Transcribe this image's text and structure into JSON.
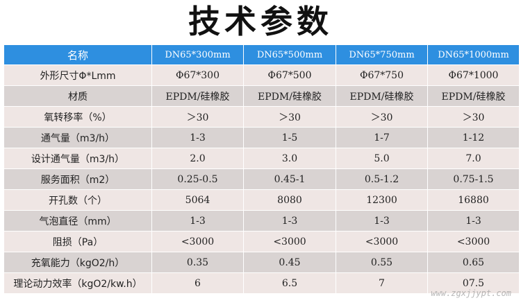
{
  "title": "技术参数",
  "header": [
    "名称",
    "DN65*300mm",
    "DN65*500mm",
    "DN65*750mm",
    "DN65*1000mm"
  ],
  "rows": [
    {
      "label": "外形尺寸Φ*Lmm",
      "values": [
        "Φ67*300",
        "Φ67*500",
        "Φ67*750",
        "Φ67*1000"
      ]
    },
    {
      "label": "材质",
      "values": [
        "EPDM/硅橡胶",
        "EPDM/硅橡胶",
        "EPDM/硅橡胶",
        "EPDM/硅橡胶"
      ]
    },
    {
      "label": "氧转移率（%）",
      "values": [
        "＞30",
        "＞30",
        "＞30",
        "＞30"
      ]
    },
    {
      "label": "通气量（m3/h）",
      "values": [
        "1-3",
        "1-5",
        "1-7",
        "1-12"
      ]
    },
    {
      "label": "设计通气量（m3/h）",
      "values": [
        "2.0",
        "3.0",
        "5.0",
        "7.0"
      ]
    },
    {
      "label": "服务面积（m2）",
      "values": [
        "0.25-0.5",
        "0.45-1",
        "0.5-1.2",
        "0.75-1.5"
      ]
    },
    {
      "label": "开孔数（个）",
      "values": [
        "5064",
        "8080",
        "12300",
        "16880"
      ]
    },
    {
      "label": "气泡直径（mm）",
      "values": [
        "1-3",
        "1-3",
        "1-3",
        "1-3"
      ]
    },
    {
      "label": "阻损（Pa）",
      "values": [
        "<3000",
        "<3000",
        "<3000",
        "<3000"
      ]
    },
    {
      "label": "充氧能力（kgO2/h）",
      "values": [
        "0.35",
        "0.45",
        "0.55",
        "0.65"
      ]
    },
    {
      "label": "理论动力效率（kgO2/kw.h）",
      "values": [
        "6",
        "6.5",
        "7",
        "07.5"
      ]
    }
  ],
  "watermark": "www.zgxjjypt.com",
  "colors": {
    "header_bg": "#2e8fe0",
    "row_light": "#efe6e4",
    "row_dark": "#d9d3d2"
  }
}
